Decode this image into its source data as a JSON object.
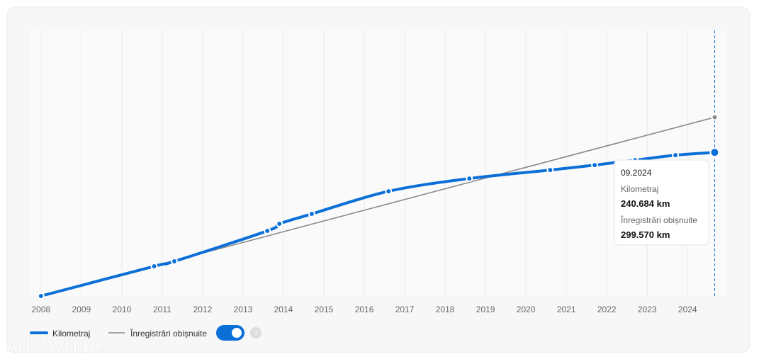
{
  "chart_data": {
    "type": "line",
    "series": [
      {
        "name": "Kilometraj",
        "color": "#0b6fd8",
        "x": [
          2008.0,
          2010.8,
          2011.3,
          2013.6,
          2013.9,
          2014.7,
          2016.6,
          2018.6,
          2020.6,
          2021.7,
          2022.7,
          2023.7,
          2024.67
        ],
        "values": [
          0,
          49800,
          58100,
          109100,
          121000,
          137600,
          175500,
          196900,
          211100,
          219400,
          227700,
          236000,
          240684
        ]
      },
      {
        "name": "Înregistrări obișnuite",
        "color": "#8a8a8a",
        "x": [
          2008.0,
          2024.67
        ],
        "values": [
          0,
          299570
        ]
      }
    ],
    "xlim": [
      2007.74,
      2024.96
    ],
    "ylim": [
      0,
      445000
    ],
    "xticks": [
      2008,
      2009,
      2010,
      2011,
      2012,
      2013,
      2014,
      2015,
      2016,
      2017,
      2018,
      2019,
      2020,
      2021,
      2022,
      2023,
      2024
    ],
    "grid": true,
    "tooltip": {
      "title": "09.2024",
      "value_labels": [
        "240.684 km",
        "299.570 km"
      ]
    },
    "watermark": "AUTOVIT.RO"
  }
}
